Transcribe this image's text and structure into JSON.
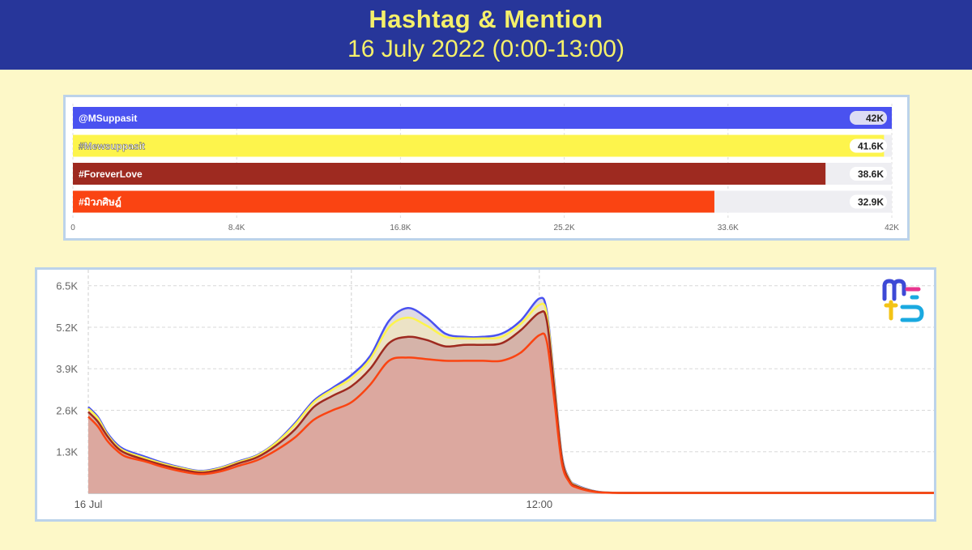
{
  "header": {
    "title": "Hashtag & Mention",
    "subtitle": "16 July 2022 (0:00-13:00)",
    "background": "#27369a",
    "text_color": "#f5f06a"
  },
  "chart_data": [
    {
      "type": "bar",
      "orientation": "horizontal",
      "categories": [
        "@MSuppasit",
        "#Mewsuppasit",
        "#ForeverLove",
        "#มิว฀฀฀ภศิษฎ์"
      ],
      "values": [
        42000,
        41600,
        38600,
        32900
      ],
      "value_labels": [
        "42K",
        "41.6K",
        "38.6K",
        "32.9K"
      ],
      "colors": [
        "#4a52f0",
        "#fdf44c",
        "#9e2a20",
        "#fa4412"
      ],
      "xlim": [
        0,
        42000
      ],
      "x_ticks": [
        0,
        8400,
        16800,
        25200,
        33600,
        42000
      ],
      "x_tick_labels": [
        "0",
        "8.4K",
        "16.8K",
        "25.2K",
        "33.6K",
        "42K"
      ],
      "grid": true
    },
    {
      "type": "area",
      "x_tick_labels": [
        "16 Jul",
        "12:00"
      ],
      "x_tick_positions": [
        0,
        12
      ],
      "xlim": [
        0,
        22.5
      ],
      "ylim": [
        0,
        7000
      ],
      "y_ticks": [
        1300,
        2600,
        3900,
        5200,
        6500
      ],
      "y_tick_labels": [
        "1.3K",
        "2.6K",
        "3.9K",
        "5.2K",
        "6.5K"
      ],
      "grid": true,
      "x": [
        0,
        0.25,
        0.5,
        0.75,
        1,
        1.5,
        2,
        2.5,
        3,
        3.5,
        4,
        4.5,
        5,
        5.5,
        6,
        6.5,
        7,
        7.5,
        8,
        8.5,
        9,
        9.5,
        10,
        10.5,
        11,
        11.5,
        12,
        12.2,
        12.4,
        12.6,
        12.8,
        13,
        13.5,
        14,
        15,
        16,
        17,
        18,
        19,
        20,
        21,
        22,
        22.5
      ],
      "series": [
        {
          "name": "@MSuppasit",
          "color": "#4a52f0",
          "values": [
            2700,
            2400,
            1900,
            1550,
            1350,
            1150,
            950,
            800,
            700,
            800,
            1000,
            1200,
            1600,
            2200,
            2900,
            3300,
            3700,
            4300,
            5400,
            5800,
            5500,
            5000,
            4900,
            4900,
            5000,
            5400,
            6100,
            5700,
            3500,
            1200,
            450,
            250,
            60,
            20,
            15,
            15,
            15,
            15,
            15,
            15,
            15,
            15,
            15
          ]
        },
        {
          "name": "#Mewsuppasit",
          "color": "#fdf44c",
          "values": [
            2650,
            2350,
            1850,
            1500,
            1300,
            1100,
            920,
            780,
            680,
            780,
            980,
            1180,
            1580,
            2150,
            2850,
            3250,
            3600,
            4200,
            5200,
            5500,
            5250,
            4900,
            4850,
            4850,
            4900,
            5300,
            5900,
            5600,
            3400,
            1150,
            430,
            230,
            55,
            18,
            14,
            14,
            14,
            14,
            14,
            14,
            14,
            14,
            14
          ]
        },
        {
          "name": "#ForeverLove",
          "color": "#9e2a20",
          "values": [
            2550,
            2250,
            1800,
            1450,
            1250,
            1050,
            880,
            740,
            650,
            740,
            940,
            1130,
            1500,
            2000,
            2700,
            3050,
            3350,
            3900,
            4700,
            4900,
            4800,
            4600,
            4650,
            4650,
            4700,
            5100,
            5650,
            5400,
            3250,
            1100,
            400,
            210,
            50,
            16,
            12,
            12,
            12,
            12,
            12,
            12,
            12,
            12,
            12
          ]
        },
        {
          "name": "#มิว฀฀฀ภศิษฎ์",
          "color": "#fa4412",
          "values": [
            2400,
            2100,
            1650,
            1350,
            1150,
            1000,
            820,
            680,
            600,
            680,
            860,
            1040,
            1350,
            1750,
            2300,
            2600,
            2850,
            3400,
            4150,
            4250,
            4200,
            4150,
            4150,
            4150,
            4150,
            4400,
            4950,
            4750,
            2900,
            950,
            350,
            180,
            40,
            12,
            10,
            10,
            10,
            10,
            10,
            10,
            10,
            10,
            10
          ]
        }
      ]
    }
  ]
}
